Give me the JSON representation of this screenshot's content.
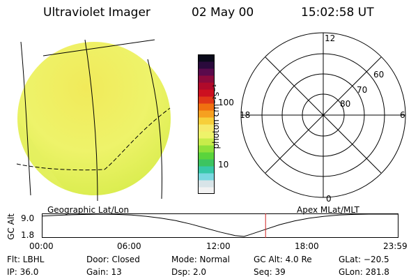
{
  "header": {
    "instrument": "Ultraviolet Imager",
    "date": "02 May 00",
    "time": "15:02:58 UT"
  },
  "left_panel": {
    "label": "Geographic Lat/Lon"
  },
  "colorbar": {
    "unit_label": "photon cm⁻²s⁻¹",
    "ticks": [
      "100",
      "10"
    ],
    "colors": [
      "#f2f2f2",
      "#d8e4e8",
      "#7ad8e0",
      "#37c8a8",
      "#3cc460",
      "#5ad43c",
      "#8ee03a",
      "#c8ec4a",
      "#eef36a",
      "#f6ea6a",
      "#f7cf3a",
      "#f6a020",
      "#f07010",
      "#e03818",
      "#cc1020",
      "#b00a2a",
      "#8c0a3c",
      "#5a0a4c",
      "#2a0a3c",
      "#0a0a1a"
    ]
  },
  "polar_panel": {
    "label": "Apex MLat/MLT",
    "mlt_labels": {
      "top": "12",
      "bottom": "0",
      "left": "18",
      "right": "6"
    },
    "lat_rings": [
      "60",
      "70",
      "80"
    ]
  },
  "altitude_plot": {
    "ylabel": "GC Alt",
    "y_ticks": [
      "9.0",
      "1.8"
    ],
    "x_ticks": [
      "00:00",
      "06:00",
      "12:00",
      "18:00",
      "23:59"
    ],
    "chart_data": {
      "type": "line",
      "x": [
        0,
        1,
        2,
        3,
        4,
        5,
        6,
        7,
        8,
        9,
        10,
        11,
        12,
        13,
        13.6,
        14,
        15,
        16,
        17,
        18,
        19,
        20,
        21,
        22,
        23,
        23.98
      ],
      "y": [
        8.4,
        8.6,
        8.8,
        8.9,
        9.0,
        8.9,
        8.7,
        8.3,
        7.7,
        6.9,
        5.8,
        4.5,
        3.2,
        2.1,
        1.8,
        2.4,
        4.0,
        5.6,
        6.8,
        7.7,
        8.3,
        8.7,
        8.9,
        9.0,
        9.0,
        9.0
      ],
      "marker_time": 15.05,
      "xlim": [
        0,
        23.98
      ],
      "ylim": [
        1.8,
        9.0
      ]
    }
  },
  "footer": {
    "filter": "Flt: LBHL",
    "ip": "IP: 36.0",
    "door": "Door: Closed",
    "gain": "Gain: 13",
    "mode": "Mode: Normal",
    "dsp": "Dsp:    2.0",
    "gc_alt": "GC Alt: 4.0 Re",
    "seq": "Seq: 39",
    "glat": "GLat: −20.5",
    "glon": "GLon: 281.8"
  }
}
